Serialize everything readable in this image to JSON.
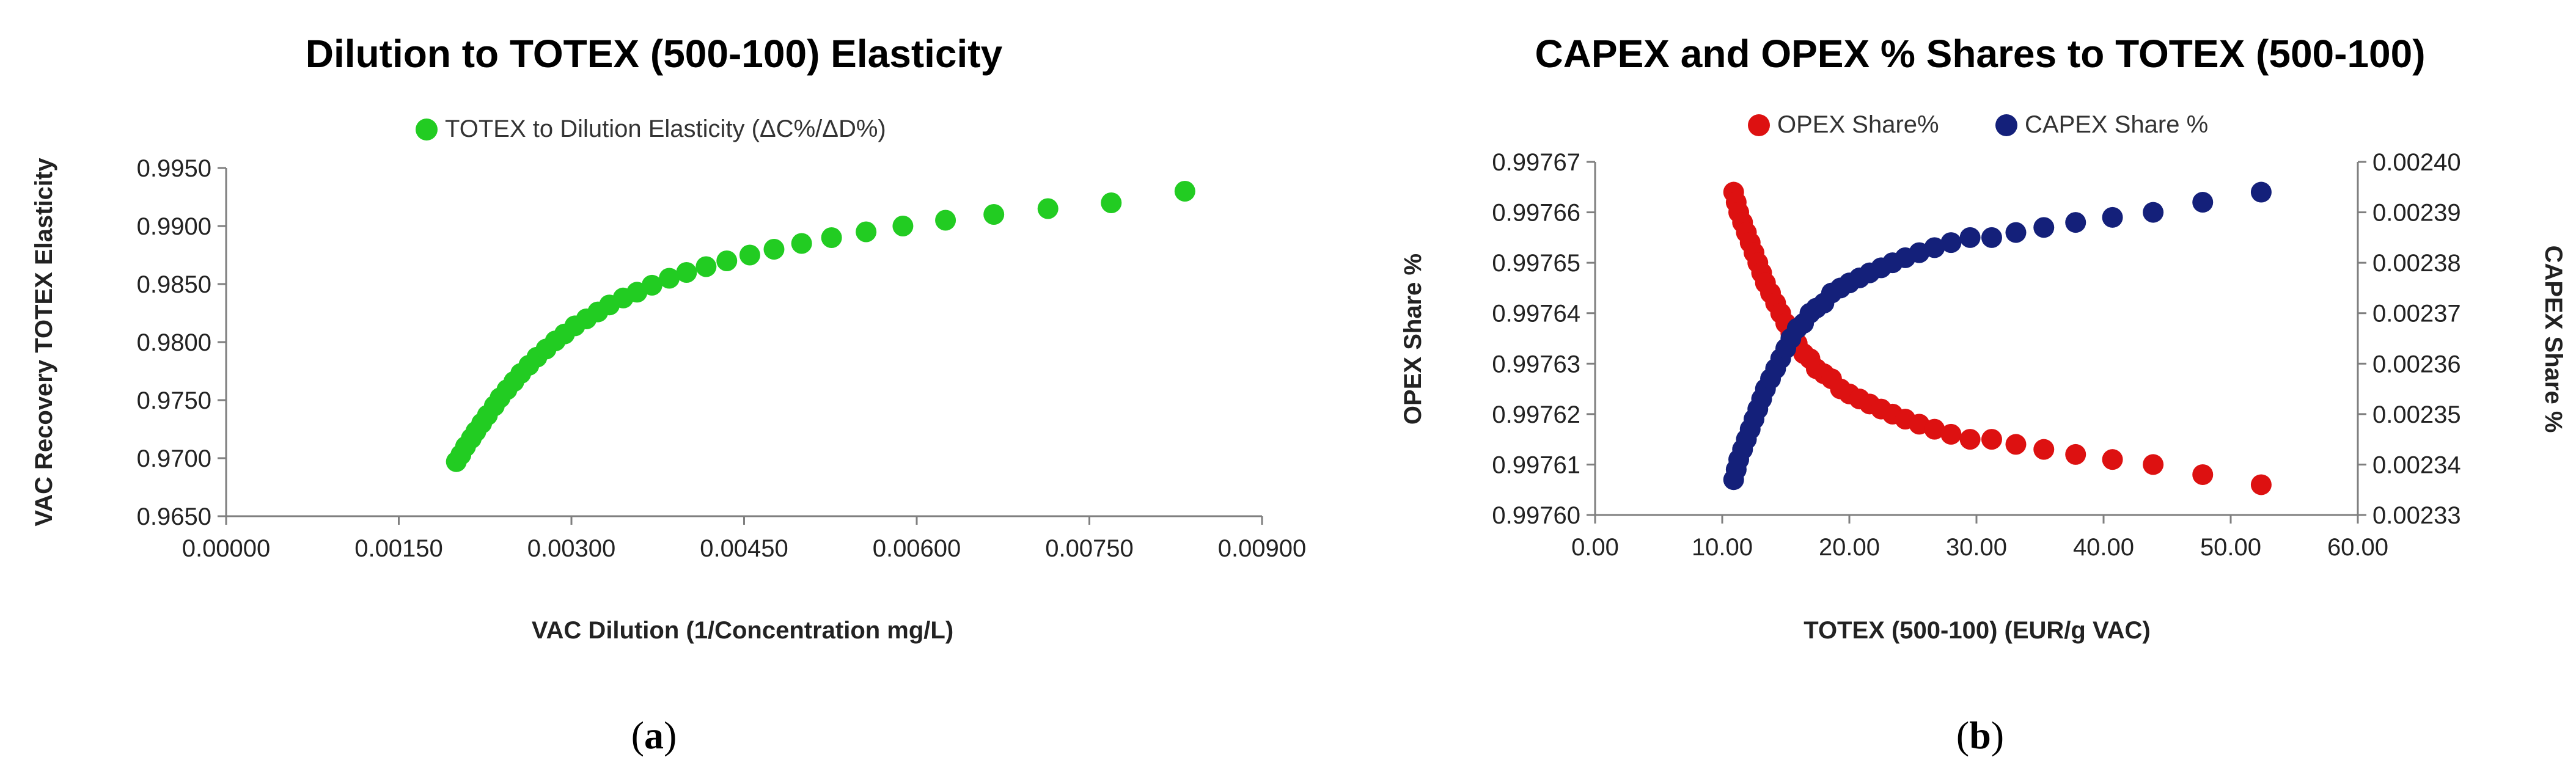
{
  "chart_data": [
    {
      "type": "scatter",
      "title": "Dilution to TOTEX (500-100) Elasticity",
      "xlabel": "VAC Dilution (1/Concentration mg/L)",
      "ylabel": "VAC Recovery TOTEX  Elasticity",
      "xlim": [
        0,
        0.009
      ],
      "ylim": [
        0.965,
        0.995
      ],
      "xticks": [
        "0.00000",
        "0.00150",
        "0.00300",
        "0.00450",
        "0.00600",
        "0.00750",
        "0.00900"
      ],
      "yticks": [
        "0.9650",
        "0.9700",
        "0.9750",
        "0.9800",
        "0.9850",
        "0.9900",
        "0.9950"
      ],
      "legend": {
        "position": "top-center"
      },
      "panel_label": "a",
      "series": [
        {
          "name": "TOTEX to Dilution Elasticity (ΔC%/ΔD%)",
          "color": "#22cc22",
          "x": [
            0.002,
            0.00204,
            0.00208,
            0.00213,
            0.00217,
            0.00222,
            0.00227,
            0.00233,
            0.00238,
            0.00244,
            0.0025,
            0.00256,
            0.00263,
            0.0027,
            0.00278,
            0.00286,
            0.00294,
            0.00303,
            0.00313,
            0.00323,
            0.00333,
            0.00345,
            0.00357,
            0.0037,
            0.00385,
            0.004,
            0.00417,
            0.00435,
            0.00455,
            0.00476,
            0.005,
            0.00526,
            0.00556,
            0.00588,
            0.00625,
            0.00667,
            0.00714,
            0.00769,
            0.00833
          ],
          "y": [
            0.9697,
            0.9703,
            0.971,
            0.9717,
            0.9723,
            0.973,
            0.9737,
            0.9745,
            0.9752,
            0.9759,
            0.9766,
            0.9773,
            0.978,
            0.9787,
            0.9794,
            0.9801,
            0.9807,
            0.9814,
            0.982,
            0.9826,
            0.9832,
            0.9838,
            0.9843,
            0.9849,
            0.9855,
            0.986,
            0.9865,
            0.987,
            0.9875,
            0.988,
            0.9885,
            0.989,
            0.9895,
            0.99,
            0.9905,
            0.991,
            0.9915,
            0.992,
            0.993
          ]
        }
      ]
    },
    {
      "type": "scatter",
      "title": "CAPEX and OPEX % Shares to TOTEX (500-100)",
      "xlabel": "TOTEX (500-100) (EUR/g VAC)",
      "ylabel": "OPEX Share %",
      "y2label": "CAPEX Share %",
      "xlim": [
        0,
        60
      ],
      "ylim": [
        0.9976,
        0.99767
      ],
      "y2lim": [
        0.00233,
        0.0024
      ],
      "xticks": [
        "0.00",
        "10.00",
        "20.00",
        "30.00",
        "40.00",
        "50.00",
        "60.00"
      ],
      "yticks": [
        "0.99760",
        "0.99761",
        "0.99762",
        "0.99763",
        "0.99764",
        "0.99765",
        "0.99766",
        "0.99767"
      ],
      "y2ticks": [
        "0.00233",
        "0.00234",
        "0.00235",
        "0.00236",
        "0.00237",
        "0.00238",
        "0.00239",
        "0.00240"
      ],
      "legend": {
        "position": "top-center"
      },
      "panel_label": "b",
      "x": [
        10.9,
        11.1,
        11.3,
        11.6,
        11.9,
        12.2,
        12.5,
        12.8,
        13.1,
        13.4,
        13.8,
        14.2,
        14.6,
        15.0,
        15.4,
        15.9,
        16.4,
        16.9,
        17.4,
        18.0,
        18.6,
        19.3,
        20.0,
        20.8,
        21.6,
        22.5,
        23.4,
        24.4,
        25.5,
        26.7,
        28.0,
        29.5,
        31.2,
        33.1,
        35.3,
        37.8,
        40.7,
        43.9,
        47.8,
        52.4
      ],
      "series": [
        {
          "name": "OPEX Share%",
          "color": "#dd1111",
          "axis": "left",
          "y": [
            0.997664,
            0.997662,
            0.99766,
            0.997658,
            0.997656,
            0.997654,
            0.997652,
            0.99765,
            0.997648,
            0.997646,
            0.997644,
            0.997642,
            0.99764,
            0.997638,
            0.997636,
            0.997634,
            0.997632,
            0.997631,
            0.997629,
            0.997628,
            0.997627,
            0.997625,
            0.997624,
            0.997623,
            0.997622,
            0.997621,
            0.99762,
            0.997619,
            0.997618,
            0.997617,
            0.997616,
            0.997615,
            0.997615,
            0.997614,
            0.997613,
            0.997612,
            0.997611,
            0.99761,
            0.997608,
            0.997606
          ]
        },
        {
          "name": "CAPEX Share %",
          "color": "#14207a",
          "axis": "right",
          "y": [
            0.002337,
            0.002339,
            0.002341,
            0.002343,
            0.002345,
            0.002347,
            0.002349,
            0.002351,
            0.002353,
            0.002355,
            0.002357,
            0.002359,
            0.002361,
            0.002363,
            0.002365,
            0.002367,
            0.002368,
            0.00237,
            0.002371,
            0.002372,
            0.002374,
            0.002375,
            0.002376,
            0.002377,
            0.002378,
            0.002379,
            0.00238,
            0.002381,
            0.002382,
            0.002383,
            0.002384,
            0.002385,
            0.002385,
            0.002386,
            0.002387,
            0.002388,
            0.002389,
            0.00239,
            0.002392,
            0.002394
          ]
        }
      ]
    }
  ]
}
